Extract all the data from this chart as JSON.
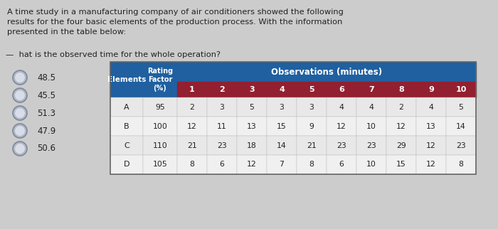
{
  "title_text": "A time study in a manufacturing company of air conditioners showed the following\nresults for the four basic elements of the production process. With the information\npresented in the table below:",
  "question_text": "hat is the observed time for the whole operation?",
  "circles_values": [
    "48.5",
    "45.5",
    "51.3",
    "47.9",
    "50.6"
  ],
  "obs_header": "Observations (minutes)",
  "col_nums": [
    "1",
    "2",
    "3",
    "4",
    "5",
    "6",
    "7",
    "8",
    "9",
    "10"
  ],
  "table_data": [
    [
      "A",
      "95",
      "2",
      "3",
      "5",
      "3",
      "3",
      "4",
      "4",
      "2",
      "4",
      "5"
    ],
    [
      "B",
      "100",
      "12",
      "11",
      "13",
      "15",
      "9",
      "12",
      "10",
      "12",
      "13",
      "14"
    ],
    [
      "C",
      "110",
      "21",
      "23",
      "18",
      "14",
      "21",
      "23",
      "23",
      "29",
      "12",
      "23"
    ],
    [
      "D",
      "105",
      "8",
      "6",
      "12",
      "7",
      "8",
      "6",
      "10",
      "15",
      "12",
      "8"
    ]
  ],
  "header_bg": "#2060a0",
  "subheader_bg": "#922030",
  "row_bg_even": "#e8e8e8",
  "row_bg_odd": "#f0f0f0",
  "header_text_color": "#ffffff",
  "bg_color": "#cccccc",
  "text_color": "#222222",
  "circle_color": "#b0b8c8",
  "circle_edge_color": "#808898"
}
